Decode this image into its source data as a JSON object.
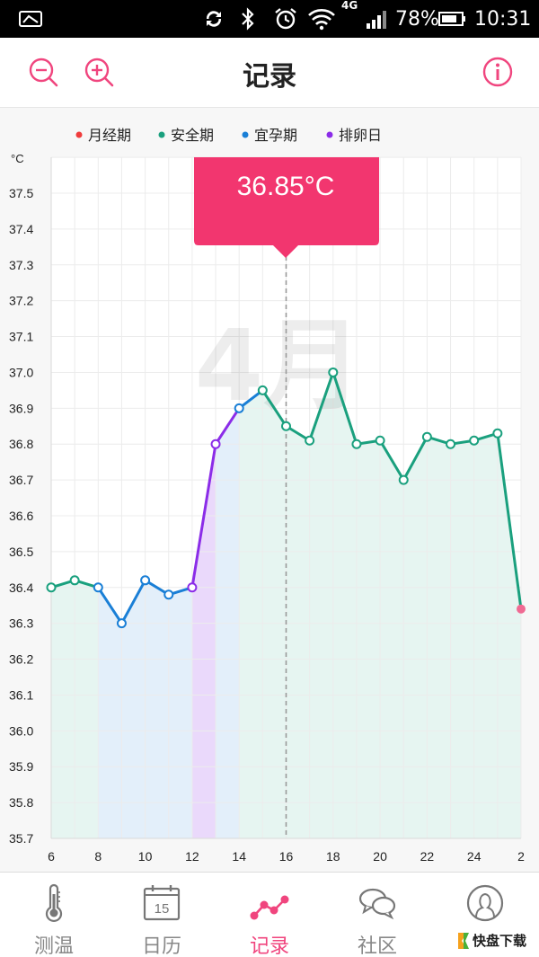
{
  "status_bar": {
    "network": "4G",
    "battery": "78%",
    "time": "10:31",
    "icons": [
      "image-icon",
      "sync-icon",
      "bluetooth-icon",
      "alarm-icon",
      "wifi-icon",
      "signal-icon",
      "battery-icon"
    ]
  },
  "header": {
    "title": "记录",
    "zoom_out_icon": "zoom-out-icon",
    "zoom_in_icon": "zoom-in-icon",
    "info_icon": "info-icon"
  },
  "colors": {
    "accent": "#f0457e",
    "safe": "#1aa07e",
    "fertile": "#1a7fd6",
    "ovulation": "#8b2ce8",
    "period": "#f03c3c",
    "tooltip": "#f2366f"
  },
  "chart_data": {
    "type": "line",
    "unit_label": "°C",
    "month_label": "4月",
    "legend": [
      {
        "label": "月经期",
        "color": "#f03c3c"
      },
      {
        "label": "安全期",
        "color": "#1aa07e"
      },
      {
        "label": "宜孕期",
        "color": "#1a7fd6"
      },
      {
        "label": "排卵日",
        "color": "#8b2ce8"
      }
    ],
    "ylim": [
      35.7,
      37.6
    ],
    "y_ticks": [
      "37.5",
      "37.4",
      "37.3",
      "37.2",
      "37.1",
      "37.0",
      "36.9",
      "36.8",
      "36.7",
      "36.6",
      "36.5",
      "36.4",
      "36.3",
      "36.2",
      "36.1",
      "36.0",
      "35.9",
      "35.8",
      "35.7"
    ],
    "x_ticks": [
      "6",
      "8",
      "10",
      "12",
      "14",
      "16",
      "18",
      "20",
      "22",
      "24",
      "2"
    ],
    "x_tick_values": [
      6,
      8,
      10,
      12,
      14,
      16,
      18,
      20,
      22,
      24,
      26
    ],
    "points": [
      {
        "day": 6,
        "temp": 36.4,
        "phase": "safe"
      },
      {
        "day": 7,
        "temp": 36.42,
        "phase": "safe"
      },
      {
        "day": 8,
        "temp": 36.4,
        "phase": "fertile"
      },
      {
        "day": 9,
        "temp": 36.3,
        "phase": "fertile"
      },
      {
        "day": 10,
        "temp": 36.42,
        "phase": "fertile"
      },
      {
        "day": 11,
        "temp": 36.38,
        "phase": "fertile"
      },
      {
        "day": 12,
        "temp": 36.4,
        "phase": "ovulation"
      },
      {
        "day": 13,
        "temp": 36.8,
        "phase": "ovulation"
      },
      {
        "day": 14,
        "temp": 36.9,
        "phase": "fertile"
      },
      {
        "day": 15,
        "temp": 36.95,
        "phase": "safe"
      },
      {
        "day": 16,
        "temp": 36.85,
        "phase": "safe"
      },
      {
        "day": 17,
        "temp": 36.81,
        "phase": "safe"
      },
      {
        "day": 18,
        "temp": 37.0,
        "phase": "safe"
      },
      {
        "day": 19,
        "temp": 36.8,
        "phase": "safe"
      },
      {
        "day": 20,
        "temp": 36.81,
        "phase": "safe"
      },
      {
        "day": 21,
        "temp": 36.7,
        "phase": "safe"
      },
      {
        "day": 22,
        "temp": 36.82,
        "phase": "safe"
      },
      {
        "day": 23,
        "temp": 36.8,
        "phase": "safe"
      },
      {
        "day": 24,
        "temp": 36.81,
        "phase": "safe"
      },
      {
        "day": 25,
        "temp": 36.83,
        "phase": "safe"
      },
      {
        "day": 26,
        "temp": 36.34,
        "phase": "period"
      }
    ],
    "bands": [
      {
        "from": 6,
        "to": 8,
        "phase": "safe"
      },
      {
        "from": 8,
        "to": 12,
        "phase": "fertile"
      },
      {
        "from": 12,
        "to": 13,
        "phase": "ovulation"
      },
      {
        "from": 13,
        "to": 14,
        "phase": "fertile"
      },
      {
        "from": 14,
        "to": 26,
        "phase": "safe"
      }
    ],
    "selected": {
      "day": 16,
      "label": "36.85°C"
    },
    "grid": true
  },
  "tabs": [
    {
      "label": "测温",
      "icon": "thermometer-icon",
      "active": false
    },
    {
      "label": "日历",
      "icon": "calendar-icon",
      "icon_text": "15",
      "active": false
    },
    {
      "label": "记录",
      "icon": "chart-line-icon",
      "active": true
    },
    {
      "label": "社区",
      "icon": "chat-bubbles-icon",
      "active": false
    },
    {
      "label": "",
      "icon": "profile-icon",
      "active": false
    }
  ],
  "watermark": {
    "text": "快盘下载"
  }
}
